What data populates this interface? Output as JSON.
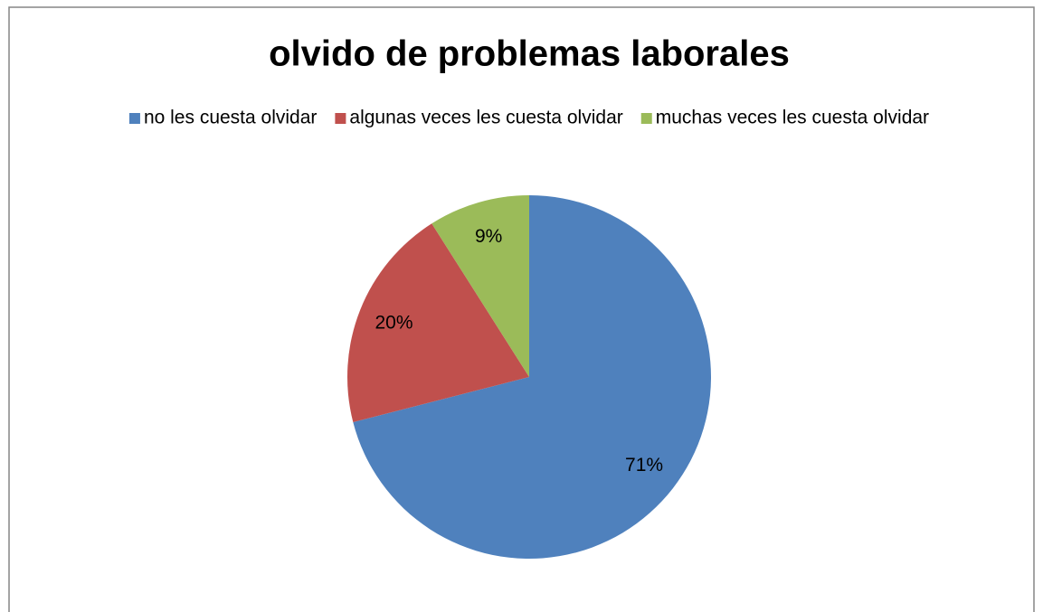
{
  "chart_data": {
    "type": "pie",
    "title": "olvido de problemas laborales",
    "categories": [
      "no les cuesta olvidar",
      "algunas veces les cuesta olvidar",
      "muchas veces les cuesta olvidar"
    ],
    "values": [
      71,
      20,
      9
    ],
    "value_labels": [
      "71%",
      "20%",
      "9%"
    ],
    "colors": [
      "#4f81bd",
      "#c0504d",
      "#9bbb59"
    ],
    "legend": "top"
  }
}
